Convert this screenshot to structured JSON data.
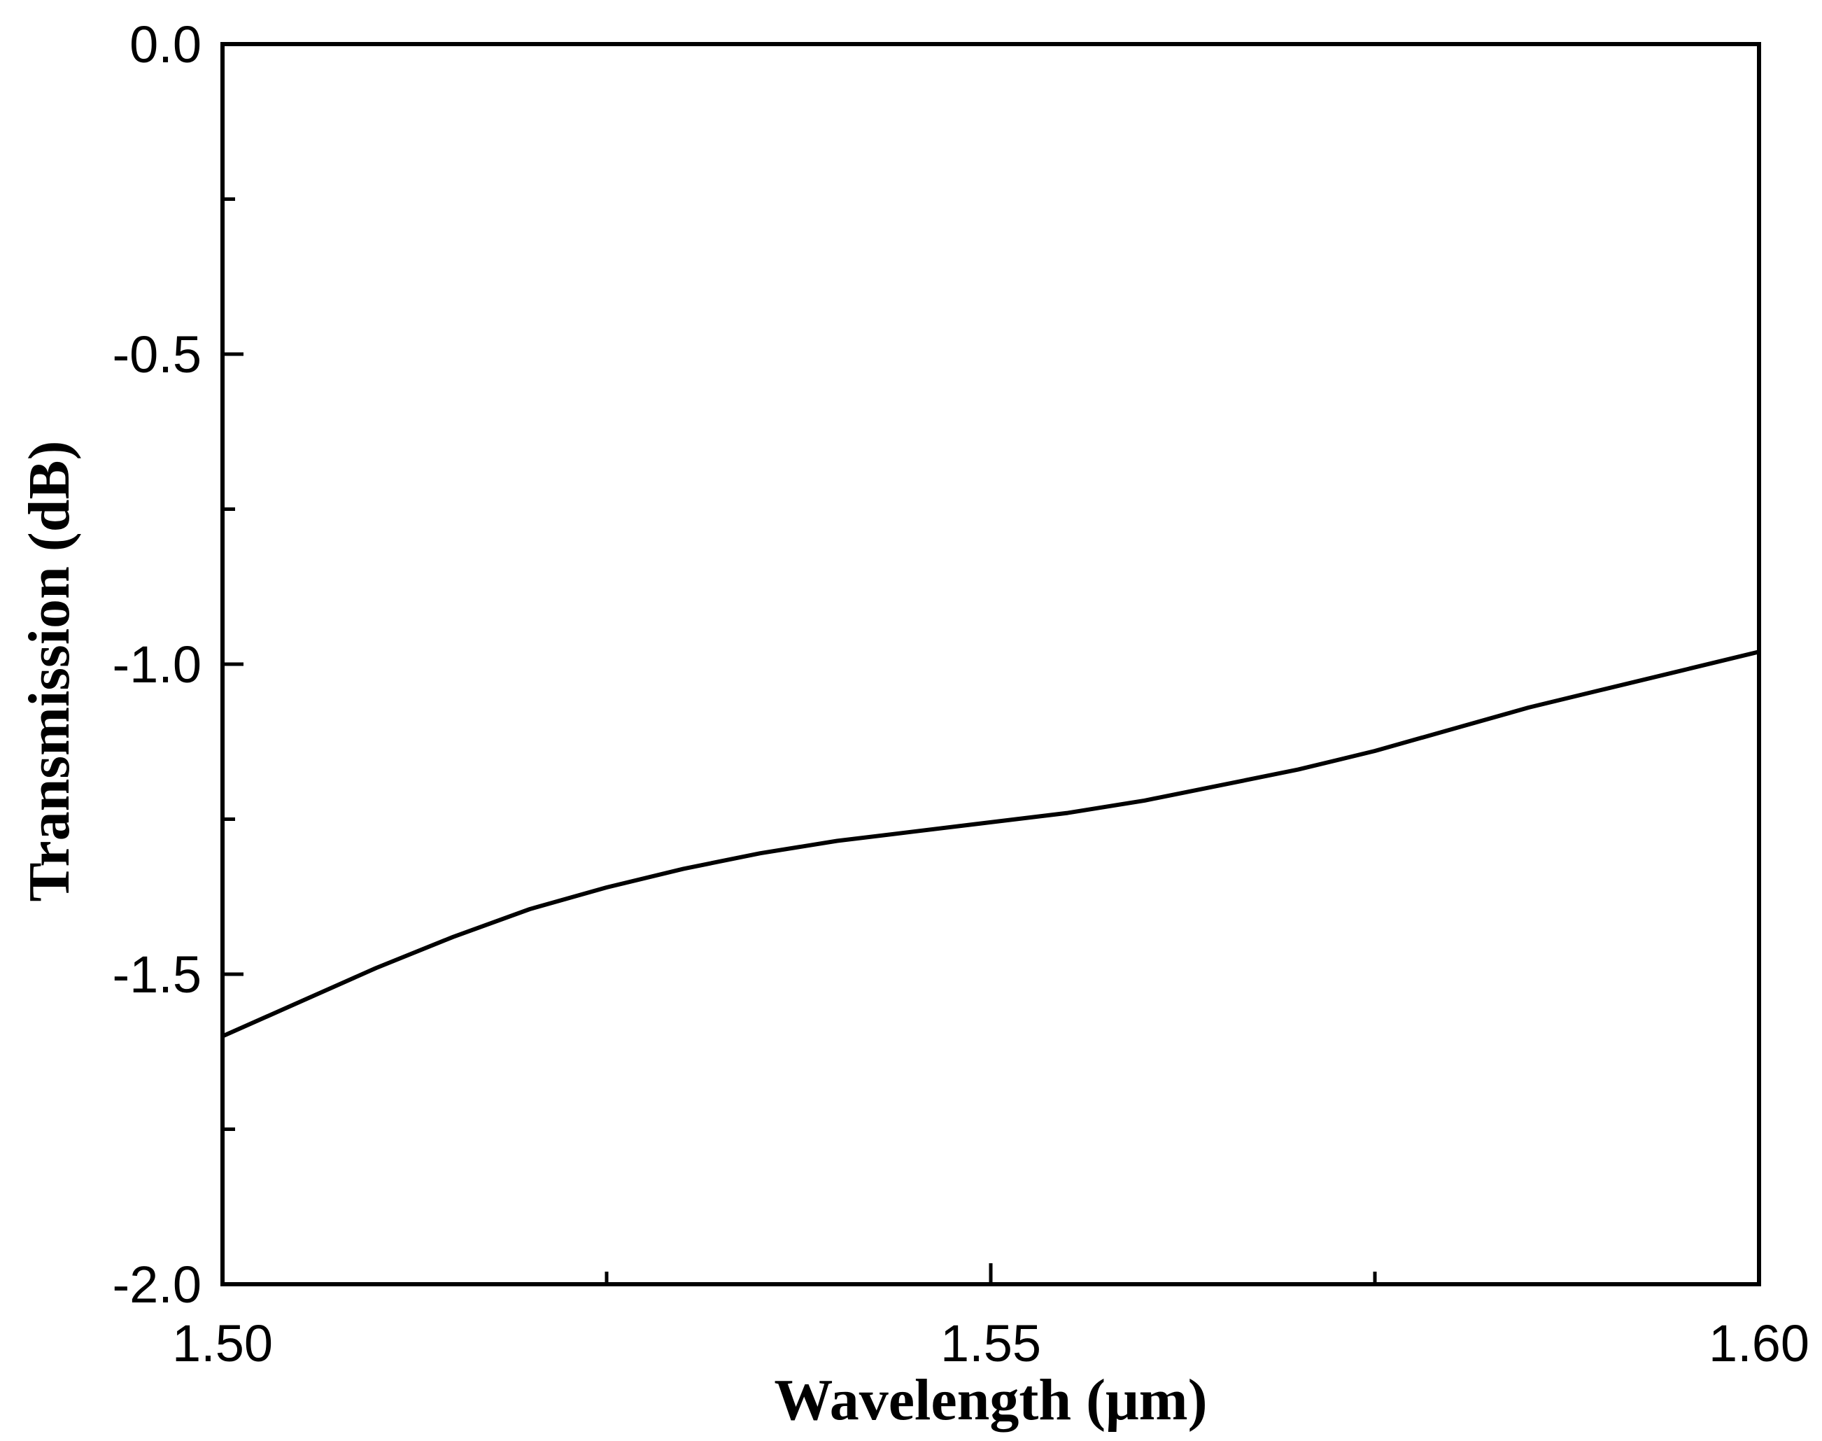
{
  "chart_data": {
    "type": "line",
    "title": "",
    "xlabel": "Wavelength (μm)",
    "ylabel": "Transmission (dB)",
    "xlim": [
      1.5,
      1.6
    ],
    "ylim": [
      -2.0,
      0.0
    ],
    "x_ticks": [
      "1.50",
      "1.55",
      "1.60"
    ],
    "x_minor_ticks": [
      1.525,
      1.575
    ],
    "y_ticks": [
      "0.0",
      "-0.5",
      "-1.0",
      "-1.5",
      "-2.0"
    ],
    "y_minor_ticks": [
      -0.25,
      -0.75,
      -1.25,
      -1.75
    ],
    "grid": false,
    "legend": "none",
    "line_color": "#000000",
    "series": [
      {
        "x": [
          1.5,
          1.505,
          1.51,
          1.515,
          1.52,
          1.525,
          1.53,
          1.535,
          1.54,
          1.545,
          1.55,
          1.555,
          1.56,
          1.565,
          1.57,
          1.575,
          1.58,
          1.585,
          1.59,
          1.595,
          1.6
        ],
        "values": [
          -1.6,
          -1.545,
          -1.49,
          -1.44,
          -1.395,
          -1.36,
          -1.33,
          -1.305,
          -1.285,
          -1.27,
          -1.255,
          -1.24,
          -1.22,
          -1.195,
          -1.17,
          -1.14,
          -1.105,
          -1.07,
          -1.04,
          -1.01,
          -0.98
        ]
      }
    ]
  }
}
